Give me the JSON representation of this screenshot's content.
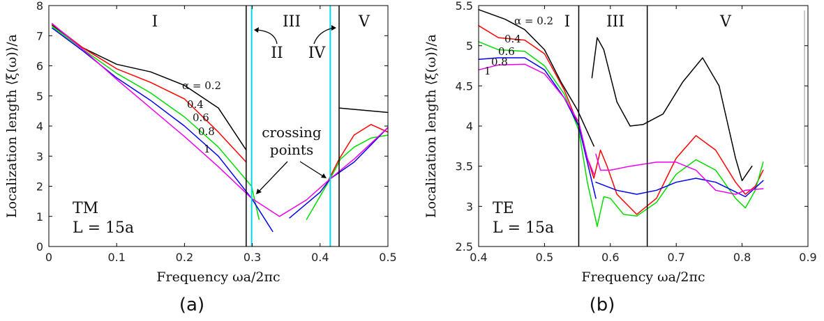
{
  "chart_data": [
    {
      "type": "line",
      "panel_label": "(a)",
      "xlabel": "Frequency ωa/2πc",
      "ylabel": "Localization length ⟨ξ(ω)⟩/a",
      "xlim": [
        0,
        0.5
      ],
      "ylim": [
        0,
        8
      ],
      "xticks": [
        "0",
        "0.1",
        "0.2",
        "0.3",
        "0.4",
        "0.5"
      ],
      "yticks": [
        "0",
        "1",
        "2",
        "3",
        "4",
        "5",
        "6",
        "7",
        "8"
      ],
      "mode_label": "TM",
      "size_label": "L = 15a",
      "region_labels": [
        "I",
        "II",
        "III",
        "IV",
        "V"
      ],
      "annotation": [
        "crossing",
        "points"
      ],
      "boundaries": [
        {
          "x": 0.291,
          "color": "#000000"
        },
        {
          "x": 0.299,
          "color": "#00d8e8"
        },
        {
          "x": 0.415,
          "color": "#00d8e8"
        },
        {
          "x": 0.428,
          "color": "#000000"
        }
      ],
      "series": [
        {
          "name": "α = 0.2",
          "label": "α = 0.2",
          "color": "#000000",
          "segments": [
            [
              [
                0.005,
                7.35
              ],
              [
                0.05,
                6.6
              ],
              [
                0.1,
                6.05
              ],
              [
                0.15,
                5.8
              ],
              [
                0.2,
                5.35
              ],
              [
                0.25,
                4.6
              ],
              [
                0.291,
                3.2
              ]
            ],
            [
              [
                0.428,
                4.6
              ],
              [
                0.5,
                4.45
              ]
            ]
          ]
        },
        {
          "name": "0.4",
          "label": "0.4",
          "color": "#ff0000",
          "segments": [
            [
              [
                0.005,
                7.38
              ],
              [
                0.05,
                6.6
              ],
              [
                0.1,
                5.9
              ],
              [
                0.15,
                5.45
              ],
              [
                0.2,
                4.9
              ],
              [
                0.25,
                3.8
              ],
              [
                0.291,
                2.8
              ]
            ],
            [
              [
                0.41,
                2.1
              ],
              [
                0.428,
                2.9
              ],
              [
                0.45,
                3.7
              ],
              [
                0.475,
                4.05
              ],
              [
                0.5,
                3.8
              ]
            ]
          ]
        },
        {
          "name": "0.6",
          "label": "0.6",
          "color": "#00dd00",
          "segments": [
            [
              [
                0.005,
                7.3
              ],
              [
                0.05,
                6.55
              ],
              [
                0.1,
                5.75
              ],
              [
                0.15,
                5.1
              ],
              [
                0.2,
                4.3
              ],
              [
                0.25,
                3.3
              ],
              [
                0.299,
                2.0
              ],
              [
                0.31,
                0.9
              ]
            ],
            [
              [
                0.38,
                0.9
              ],
              [
                0.415,
                2.25
              ],
              [
                0.43,
                2.9
              ],
              [
                0.45,
                3.3
              ],
              [
                0.475,
                3.6
              ],
              [
                0.5,
                3.7
              ]
            ]
          ]
        },
        {
          "name": "0.8",
          "label": "0.8",
          "color": "#0000ee",
          "segments": [
            [
              [
                0.005,
                7.25
              ],
              [
                0.05,
                6.5
              ],
              [
                0.1,
                5.6
              ],
              [
                0.15,
                4.85
              ],
              [
                0.2,
                4.0
              ],
              [
                0.25,
                3.0
              ],
              [
                0.299,
                1.6
              ],
              [
                0.33,
                0.5
              ]
            ],
            [
              [
                0.355,
                0.95
              ],
              [
                0.4,
                1.8
              ],
              [
                0.415,
                2.25
              ],
              [
                0.45,
                2.8
              ],
              [
                0.5,
                3.95
              ]
            ]
          ]
        },
        {
          "name": "1",
          "label": "1",
          "color": "#ee00ee",
          "segments": [
            [
              [
                0.005,
                7.4
              ],
              [
                0.05,
                6.55
              ],
              [
                0.1,
                5.55
              ],
              [
                0.15,
                4.6
              ],
              [
                0.2,
                3.65
              ],
              [
                0.25,
                2.65
              ],
              [
                0.299,
                1.6
              ],
              [
                0.34,
                1.0
              ],
              [
                0.38,
                1.55
              ],
              [
                0.415,
                2.25
              ],
              [
                0.45,
                2.9
              ],
              [
                0.5,
                3.95
              ]
            ]
          ]
        }
      ]
    },
    {
      "type": "line",
      "panel_label": "(b)",
      "xlabel": "Frequency ωa/2πc",
      "ylabel": "Localization length ⟨ξ(ω)⟩/a",
      "xlim": [
        0.4,
        0.9
      ],
      "ylim": [
        2.5,
        5.5
      ],
      "xticks": [
        "0.4",
        "0.5",
        "0.6",
        "0.7",
        "0.8",
        "0.9"
      ],
      "yticks": [
        "2.5",
        "3",
        "3.5",
        "4",
        "4.5",
        "5",
        "5.5"
      ],
      "mode_label": "TE",
      "size_label": "L = 15a",
      "region_labels": [
        "I",
        "III",
        "V"
      ],
      "boundaries": [
        {
          "x": 0.552,
          "color": "#000000"
        },
        {
          "x": 0.656,
          "color": "#000000"
        }
      ],
      "series": [
        {
          "name": "α = 0.2",
          "label": "α = 0.2",
          "color": "#000000",
          "segments": [
            [
              [
                0.4,
                5.45
              ],
              [
                0.44,
                5.33
              ],
              [
                0.47,
                5.2
              ],
              [
                0.5,
                4.95
              ],
              [
                0.525,
                4.55
              ],
              [
                0.55,
                4.2
              ],
              [
                0.575,
                3.75
              ]
            ],
            [
              [
                0.572,
                4.6
              ],
              [
                0.58,
                5.1
              ],
              [
                0.59,
                4.95
              ],
              [
                0.61,
                4.3
              ],
              [
                0.63,
                4.0
              ],
              [
                0.65,
                4.02
              ],
              [
                0.68,
                4.15
              ],
              [
                0.71,
                4.55
              ],
              [
                0.74,
                4.85
              ],
              [
                0.765,
                4.5
              ],
              [
                0.79,
                3.6
              ],
              [
                0.8,
                3.32
              ],
              [
                0.815,
                3.5
              ]
            ]
          ]
        },
        {
          "name": "0.4",
          "label": "0.4",
          "color": "#ff0000",
          "segments": [
            [
              [
                0.4,
                5.25
              ],
              [
                0.43,
                5.1
              ],
              [
                0.47,
                5.07
              ],
              [
                0.5,
                4.9
              ],
              [
                0.53,
                4.45
              ],
              [
                0.552,
                4.0
              ],
              [
                0.565,
                3.6
              ],
              [
                0.575,
                3.35
              ],
              [
                0.585,
                3.7
              ],
              [
                0.595,
                3.5
              ],
              [
                0.61,
                3.15
              ],
              [
                0.64,
                2.9
              ],
              [
                0.67,
                3.1
              ],
              [
                0.7,
                3.6
              ],
              [
                0.73,
                3.88
              ],
              [
                0.76,
                3.7
              ],
              [
                0.79,
                3.3
              ],
              [
                0.805,
                3.15
              ],
              [
                0.82,
                3.25
              ],
              [
                0.832,
                3.45
              ]
            ]
          ]
        },
        {
          "name": "0.6",
          "label": "0.6",
          "color": "#00dd00",
          "segments": [
            [
              [
                0.4,
                5.05
              ],
              [
                0.43,
                4.95
              ],
              [
                0.47,
                4.93
              ],
              [
                0.5,
                4.75
              ],
              [
                0.53,
                4.4
              ],
              [
                0.552,
                3.95
              ],
              [
                0.565,
                3.3
              ],
              [
                0.58,
                2.75
              ],
              [
                0.59,
                3.12
              ],
              [
                0.6,
                3.1
              ],
              [
                0.62,
                2.9
              ],
              [
                0.64,
                2.88
              ],
              [
                0.67,
                3.05
              ],
              [
                0.7,
                3.4
              ],
              [
                0.73,
                3.58
              ],
              [
                0.76,
                3.45
              ],
              [
                0.79,
                3.1
              ],
              [
                0.805,
                2.98
              ],
              [
                0.82,
                3.2
              ],
              [
                0.832,
                3.55
              ]
            ]
          ]
        },
        {
          "name": "0.8",
          "label": "0.8",
          "color": "#0000ee",
          "segments": [
            [
              [
                0.4,
                4.83
              ],
              [
                0.43,
                4.85
              ],
              [
                0.47,
                4.85
              ],
              [
                0.5,
                4.7
              ],
              [
                0.53,
                4.35
              ],
              [
                0.552,
                4.0
              ],
              [
                0.565,
                3.55
              ],
              [
                0.578,
                3.1
              ]
            ],
            [
              [
                0.578,
                3.3
              ],
              [
                0.61,
                3.2
              ],
              [
                0.64,
                3.15
              ],
              [
                0.67,
                3.2
              ],
              [
                0.7,
                3.3
              ],
              [
                0.73,
                3.35
              ],
              [
                0.76,
                3.3
              ],
              [
                0.79,
                3.18
              ],
              [
                0.805,
                3.12
              ],
              [
                0.832,
                3.32
              ]
            ]
          ]
        },
        {
          "name": "1",
          "label": "1",
          "color": "#ee00ee",
          "segments": [
            [
              [
                0.4,
                4.7
              ],
              [
                0.43,
                4.76
              ],
              [
                0.47,
                4.77
              ],
              [
                0.5,
                4.65
              ],
              [
                0.53,
                4.35
              ],
              [
                0.552,
                4.05
              ],
              [
                0.565,
                3.6
              ],
              [
                0.575,
                3.4
              ]
            ],
            [
              [
                0.578,
                3.65
              ],
              [
                0.585,
                3.45
              ],
              [
                0.6,
                3.45
              ],
              [
                0.63,
                3.5
              ],
              [
                0.67,
                3.55
              ],
              [
                0.7,
                3.55
              ],
              [
                0.73,
                3.45
              ],
              [
                0.76,
                3.2
              ],
              [
                0.79,
                3.15
              ],
              [
                0.805,
                3.2
              ],
              [
                0.832,
                3.22
              ]
            ]
          ]
        }
      ]
    }
  ]
}
